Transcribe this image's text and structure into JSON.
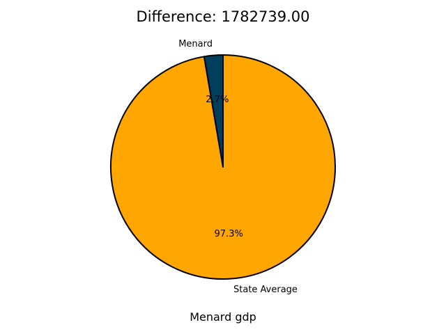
{
  "chart_data": {
    "type": "pie",
    "title": "Difference: 1782739.00",
    "xlabel": "Menard gdp",
    "slices": [
      {
        "label": "Menard",
        "value": 2.7,
        "pct_label": "2.7%",
        "color": "#003f5c"
      },
      {
        "label": "State Average",
        "value": 97.3,
        "pct_label": "97.3%",
        "color": "#ffa600"
      }
    ],
    "start_angle_deg": 90,
    "direction": "counterclockwise",
    "edge_color": "#000000"
  }
}
